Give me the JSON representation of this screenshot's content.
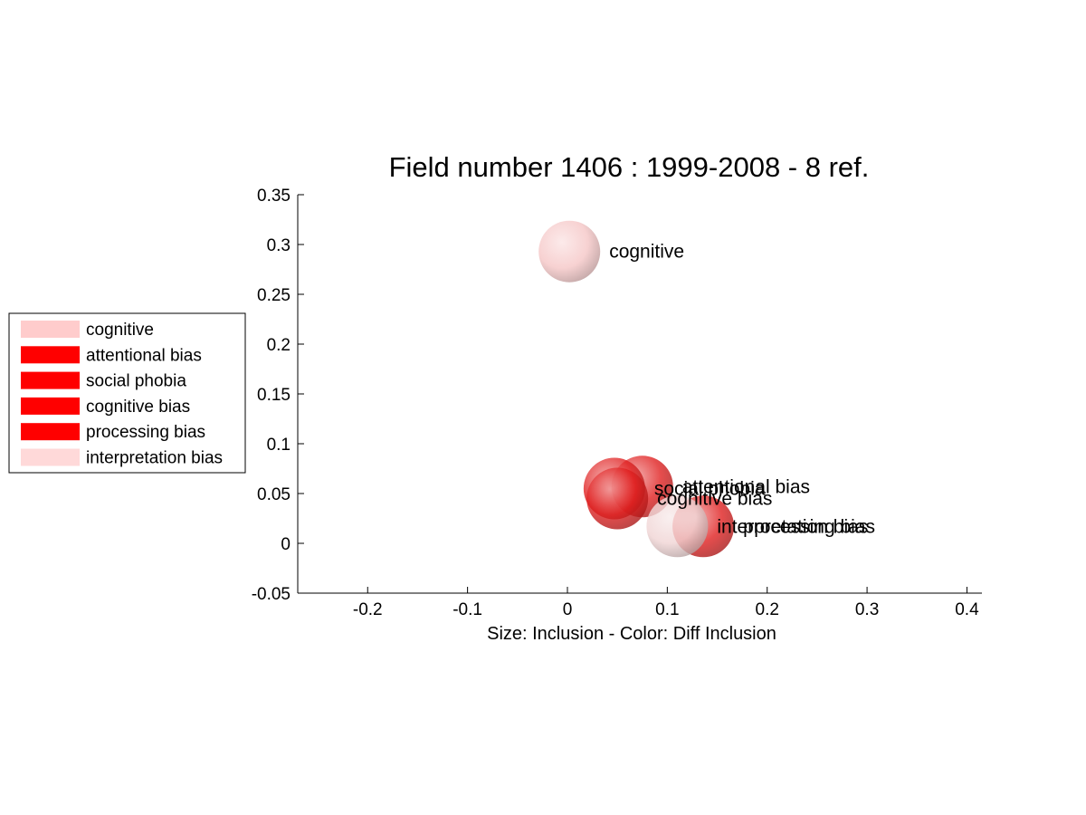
{
  "chart_data": {
    "type": "scatter",
    "title": "Field number 1406 : 1999-2008  - 8 ref.",
    "xlabel": "Size: Inclusion - Color: Diff Inclusion",
    "ylabel": "",
    "xlim": [
      -0.27,
      0.415
    ],
    "ylim": [
      -0.05,
      0.35
    ],
    "xticks": [
      -0.2,
      -0.1,
      0,
      0.1,
      0.2,
      0.3,
      0.4
    ],
    "xtick_labels": [
      "-0.2",
      "-0.1",
      "0",
      "0.1",
      "0.2",
      "0.3",
      "0.4"
    ],
    "yticks": [
      -0.05,
      0,
      0.05,
      0.1,
      0.15,
      0.2,
      0.25,
      0.3,
      0.35
    ],
    "ytick_labels": [
      "-0.05",
      "0",
      "0.05",
      "0.1",
      "0.15",
      "0.2",
      "0.25",
      "0.3",
      "0.35"
    ],
    "grid": false,
    "legend_position": "left",
    "points": [
      {
        "label": "cognitive",
        "x": 0.002,
        "y": 0.293,
        "color": "#f5c6c6"
      },
      {
        "label": "attentional bias",
        "x": 0.075,
        "y": 0.057,
        "color": "#e02020"
      },
      {
        "label": "social phobia",
        "x": 0.047,
        "y": 0.055,
        "color": "#e02020"
      },
      {
        "label": "cognitive bias",
        "x": 0.05,
        "y": 0.045,
        "color": "#e02020"
      },
      {
        "label": "processing bias",
        "x": 0.136,
        "y": 0.017,
        "color": "#e02020"
      },
      {
        "label": "interpretation bias",
        "x": 0.11,
        "y": 0.017,
        "color": "#f0d4d4"
      }
    ],
    "legend": [
      {
        "label": "cognitive",
        "color": "#ffcccc"
      },
      {
        "label": "attentional bias",
        "color": "#ff0000"
      },
      {
        "label": "social phobia",
        "color": "#ff0000"
      },
      {
        "label": "cognitive bias",
        "color": "#ff0000"
      },
      {
        "label": "processing bias",
        "color": "#ff0000"
      },
      {
        "label": "interpretation bias",
        "color": "#ffd9d9"
      }
    ]
  }
}
